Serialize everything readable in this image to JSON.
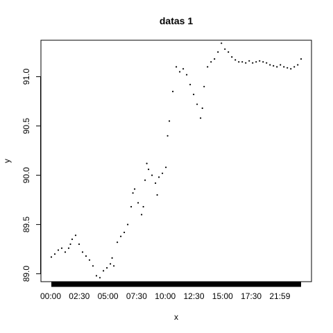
{
  "chart_data": {
    "type": "scatter",
    "title": "datas 1",
    "xlabel": "x",
    "ylabel": "y",
    "x_tick_labels": [
      "00:00",
      "02:30",
      "05:00",
      "07:30",
      "10:00",
      "12:30",
      "15:00",
      "17:30",
      "21:59"
    ],
    "y_tick_labels": [
      "89.0",
      "89.5",
      "90.0",
      "90.5",
      "91.0"
    ],
    "y_ticks": [
      89.0,
      89.5,
      90.0,
      90.5,
      91.0
    ],
    "ylim": [
      88.92,
      91.37
    ],
    "xlim": [
      "00:00",
      "23:59"
    ],
    "grid": false,
    "point_color": "#000000",
    "series": [
      {
        "x": [
          "00:00",
          "00:20",
          "00:40",
          "01:00",
          "01:20",
          "01:40",
          "01:50",
          "02:00",
          "02:20",
          "02:40",
          "03:00",
          "03:20",
          "03:40",
          "04:00",
          "04:20",
          "04:40",
          "05:00",
          "05:20",
          "05:40",
          "05:50",
          "06:00",
          "06:20",
          "06:40",
          "07:00",
          "07:20",
          "07:40",
          "07:50",
          "08:00",
          "08:20",
          "08:40",
          "08:50",
          "09:00",
          "09:10",
          "09:20",
          "09:40",
          "10:00",
          "10:10",
          "10:20",
          "10:40",
          "11:00",
          "11:10",
          "11:20",
          "11:40",
          "12:00",
          "12:20",
          "12:40",
          "13:00",
          "13:20",
          "13:40",
          "14:00",
          "14:20",
          "14:30",
          "14:40",
          "15:00",
          "15:20",
          "15:40",
          "16:00",
          "16:20",
          "16:40",
          "17:00",
          "17:20",
          "17:40",
          "18:00",
          "18:20",
          "18:40",
          "19:00",
          "19:20",
          "19:40",
          "20:00",
          "20:20",
          "20:40",
          "21:00",
          "21:20",
          "21:40",
          "22:00",
          "22:20",
          "22:40",
          "23:00",
          "23:20",
          "23:40",
          "23:59"
        ],
        "y": [
          89.17,
          89.2,
          89.24,
          89.26,
          89.22,
          89.26,
          89.3,
          89.35,
          89.39,
          89.3,
          89.22,
          89.18,
          89.14,
          89.08,
          88.98,
          88.96,
          89.03,
          89.06,
          89.1,
          89.16,
          89.08,
          89.32,
          89.38,
          89.42,
          89.5,
          89.68,
          89.82,
          89.86,
          89.72,
          89.6,
          89.68,
          89.95,
          90.12,
          90.06,
          90.0,
          89.92,
          89.8,
          89.98,
          90.02,
          90.08,
          90.4,
          90.55,
          90.85,
          91.1,
          91.05,
          91.08,
          91.02,
          90.92,
          90.82,
          90.72,
          90.58,
          90.68,
          90.9,
          91.1,
          91.15,
          91.18,
          91.25,
          91.34,
          91.28,
          91.25,
          91.2,
          91.17,
          91.15,
          91.15,
          91.14,
          91.16,
          91.14,
          91.15,
          91.16,
          91.15,
          91.14,
          91.12,
          91.11,
          91.1,
          91.12,
          91.1,
          91.09,
          91.08,
          91.1,
          91.12,
          91.18
        ]
      }
    ]
  }
}
